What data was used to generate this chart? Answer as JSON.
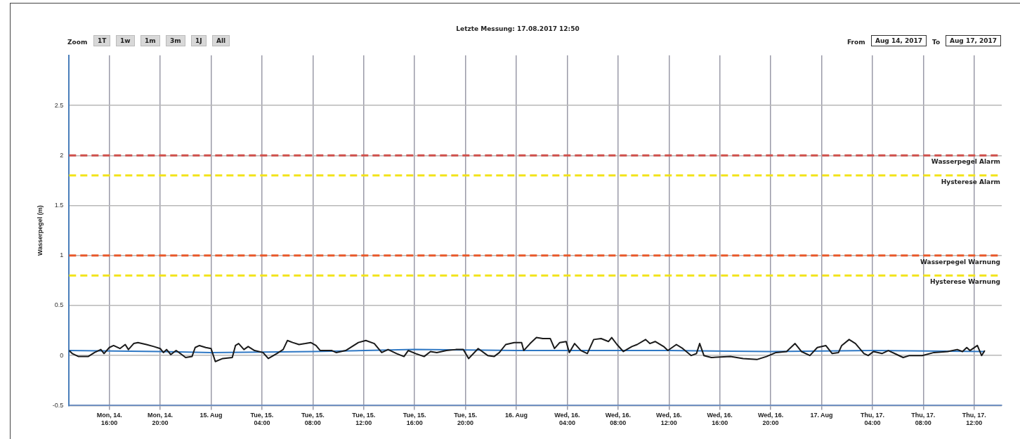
{
  "chart_data": {
    "type": "line",
    "title": "Letzte Messung: 17.08.2017 12:50",
    "ylabel": "Wasserpegel (m)",
    "annotations": [
      "Zoom",
      "1T",
      "1w",
      "1m",
      "3m",
      "1J",
      "All",
      "From",
      "Aug 14, 2017",
      "To",
      "Aug 17, 2017"
    ],
    "xlim": [
      "2017-08-14T12:50",
      "2017-08-17T14:10"
    ],
    "xticks": [
      {
        "value": "2017-08-14T16:00",
        "label": "Mon, 14.\n16:00"
      },
      {
        "value": "2017-08-14T20:00",
        "label": "Mon, 14.\n20:00"
      },
      {
        "value": "2017-08-15T00:00",
        "label": "15. Aug"
      },
      {
        "value": "2017-08-15T04:00",
        "label": "Tue, 15.\n04:00"
      },
      {
        "value": "2017-08-15T08:00",
        "label": "Tue, 15.\n08:00"
      },
      {
        "value": "2017-08-15T12:00",
        "label": "Tue, 15.\n12:00"
      },
      {
        "value": "2017-08-15T16:00",
        "label": "Tue, 15.\n16:00"
      },
      {
        "value": "2017-08-15T20:00",
        "label": "Tue, 15.\n20:00"
      },
      {
        "value": "2017-08-16T00:00",
        "label": "16. Aug"
      },
      {
        "value": "2017-08-16T04:00",
        "label": "Wed, 16.\n04:00"
      },
      {
        "value": "2017-08-16T08:00",
        "label": "Wed, 16.\n08:00"
      },
      {
        "value": "2017-08-16T12:00",
        "label": "Wed, 16.\n12:00"
      },
      {
        "value": "2017-08-16T16:00",
        "label": "Wed, 16.\n16:00"
      },
      {
        "value": "2017-08-16T20:00",
        "label": "Wed, 16.\n20:00"
      },
      {
        "value": "2017-08-17T00:00",
        "label": "17. Aug"
      },
      {
        "value": "2017-08-17T04:00",
        "label": "Thu, 17.\n04:00"
      },
      {
        "value": "2017-08-17T08:00",
        "label": "Thu, 17.\n08:00"
      },
      {
        "value": "2017-08-17T12:00",
        "label": "Thu, 17.\n12:00"
      }
    ],
    "ylim": [
      -0.5,
      3
    ],
    "yticks": [
      -0.5,
      0,
      0.5,
      1,
      1.5,
      2,
      2.5
    ],
    "grid": true,
    "legend": false,
    "marker": "none",
    "line_style": "solid",
    "ref_lines": [
      {
        "axis": "y",
        "value": 2,
        "label": "Wasserpegel Alarm",
        "color": "#d0504c",
        "line_style": "dashed"
      },
      {
        "axis": "y",
        "value": 1.8,
        "label": "Hysterese Alarm",
        "color": "#f2e41a",
        "line_style": "dashed"
      },
      {
        "axis": "y",
        "value": 1,
        "label": "Wasserpegel Warnung",
        "color": "#e8582a",
        "line_style": "dashed"
      },
      {
        "axis": "y",
        "value": 0.8,
        "label": "Hysterese Warnung",
        "color": "#f2e41a",
        "line_style": "dashed"
      }
    ],
    "series": [
      {
        "color": "#1a1a1a",
        "x": [
          "2017-08-14T12:50",
          "2017-08-14T13:05",
          "2017-08-14T13:35",
          "2017-08-14T14:20",
          "2017-08-14T14:50",
          "2017-08-14T15:20",
          "2017-08-14T15:35",
          "2017-08-14T16:00",
          "2017-08-14T16:20",
          "2017-08-14T16:50",
          "2017-08-14T17:15",
          "2017-08-14T17:30",
          "2017-08-14T17:55",
          "2017-08-14T18:15",
          "2017-08-14T18:55",
          "2017-08-14T19:30",
          "2017-08-14T20:00",
          "2017-08-14T20:15",
          "2017-08-14T20:30",
          "2017-08-14T20:50",
          "2017-08-14T21:15",
          "2017-08-14T21:35",
          "2017-08-14T22:00",
          "2017-08-14T22:30",
          "2017-08-14T22:45",
          "2017-08-14T23:05",
          "2017-08-14T23:35",
          "2017-08-15T00:00",
          "2017-08-15T00:20",
          "2017-08-15T00:55",
          "2017-08-15T01:40",
          "2017-08-15T01:55",
          "2017-08-15T02:10",
          "2017-08-15T02:35",
          "2017-08-15T02:55",
          "2017-08-15T03:25",
          "2017-08-15T04:05",
          "2017-08-15T04:30",
          "2017-08-15T05:10",
          "2017-08-15T05:40",
          "2017-08-15T06:00",
          "2017-08-15T06:25",
          "2017-08-15T06:55",
          "2017-08-15T07:25",
          "2017-08-15T07:50",
          "2017-08-15T08:15",
          "2017-08-15T08:35",
          "2017-08-15T09:30",
          "2017-08-15T09:50",
          "2017-08-15T10:35",
          "2017-08-15T11:05",
          "2017-08-15T11:35",
          "2017-08-15T12:10",
          "2017-08-15T12:50",
          "2017-08-15T13:25",
          "2017-08-15T13:55",
          "2017-08-15T14:35",
          "2017-08-15T15:10",
          "2017-08-15T15:30",
          "2017-08-15T16:05",
          "2017-08-15T16:45",
          "2017-08-15T17:15",
          "2017-08-15T17:45",
          "2017-08-15T18:30",
          "2017-08-15T19:15",
          "2017-08-15T19:50",
          "2017-08-15T20:15",
          "2017-08-15T21:00",
          "2017-08-15T21:45",
          "2017-08-15T22:15",
          "2017-08-15T22:40",
          "2017-08-15T23:10",
          "2017-08-15T23:50",
          "2017-08-16T00:25",
          "2017-08-16T00:35",
          "2017-08-16T01:05",
          "2017-08-16T01:35",
          "2017-08-16T02:05",
          "2017-08-16T02:40",
          "2017-08-16T03:00",
          "2017-08-16T03:25",
          "2017-08-16T03:55",
          "2017-08-16T04:10",
          "2017-08-16T04:35",
          "2017-08-16T05:05",
          "2017-08-16T05:35",
          "2017-08-16T06:05",
          "2017-08-16T06:40",
          "2017-08-16T07:15",
          "2017-08-16T07:30",
          "2017-08-16T07:55",
          "2017-08-16T08:25",
          "2017-08-16T09:05",
          "2017-08-16T09:30",
          "2017-08-16T10:10",
          "2017-08-16T10:30",
          "2017-08-16T10:55",
          "2017-08-16T11:35",
          "2017-08-16T11:55",
          "2017-08-16T12:35",
          "2017-08-16T13:05",
          "2017-08-16T13:45",
          "2017-08-16T14:10",
          "2017-08-16T14:25",
          "2017-08-16T14:45",
          "2017-08-16T15:20",
          "2017-08-16T16:50",
          "2017-08-16T17:50",
          "2017-08-16T18:55",
          "2017-08-16T19:40",
          "2017-08-16T20:25",
          "2017-08-16T21:15",
          "2017-08-16T21:55",
          "2017-08-16T22:25",
          "2017-08-16T23:05",
          "2017-08-16T23:40",
          "2017-08-17T00:20",
          "2017-08-17T00:50",
          "2017-08-17T01:20",
          "2017-08-17T01:35",
          "2017-08-17T02:10",
          "2017-08-17T02:40",
          "2017-08-17T03:20",
          "2017-08-17T03:40",
          "2017-08-17T04:05",
          "2017-08-17T04:45",
          "2017-08-17T05:15",
          "2017-08-17T05:55",
          "2017-08-17T06:25",
          "2017-08-17T06:55",
          "2017-08-17T07:55",
          "2017-08-17T08:50",
          "2017-08-17T09:55",
          "2017-08-17T10:40",
          "2017-08-17T11:05",
          "2017-08-17T11:25",
          "2017-08-17T11:40",
          "2017-08-17T12:15",
          "2017-08-17T12:35",
          "2017-08-17T12:50"
        ],
        "values": [
          0.05,
          0.02,
          -0.01,
          -0.01,
          0.03,
          0.06,
          0.02,
          0.08,
          0.1,
          0.07,
          0.11,
          0.06,
          0.12,
          0.13,
          0.11,
          0.09,
          0.07,
          0.03,
          0.06,
          0.01,
          0.05,
          0.02,
          -0.02,
          -0.01,
          0.08,
          0.1,
          0.08,
          0.07,
          -0.06,
          -0.03,
          -0.02,
          0.1,
          0.12,
          0.06,
          0.09,
          0.05,
          0.03,
          -0.03,
          0.02,
          0.06,
          0.15,
          0.13,
          0.11,
          0.12,
          0.13,
          0.1,
          0.05,
          0.05,
          0.03,
          0.05,
          0.09,
          0.13,
          0.15,
          0.12,
          0.03,
          0.06,
          0.02,
          -0.01,
          0.05,
          0.02,
          -0.01,
          0.04,
          0.03,
          0.05,
          0.06,
          0.06,
          -0.03,
          0.07,
          0.0,
          -0.01,
          0.03,
          0.11,
          0.13,
          0.13,
          0.05,
          0.12,
          0.18,
          0.17,
          0.17,
          0.07,
          0.13,
          0.14,
          0.03,
          0.12,
          0.05,
          0.02,
          0.16,
          0.17,
          0.14,
          0.18,
          0.11,
          0.04,
          0.09,
          0.11,
          0.16,
          0.12,
          0.14,
          0.09,
          0.05,
          0.11,
          0.07,
          0.0,
          0.02,
          0.12,
          0.0,
          -0.02,
          -0.01,
          -0.03,
          -0.04,
          -0.01,
          0.03,
          0.04,
          0.12,
          0.04,
          0.0,
          0.08,
          0.1,
          0.02,
          0.03,
          0.1,
          0.16,
          0.12,
          0.02,
          0.0,
          0.04,
          0.02,
          0.05,
          0.01,
          -0.02,
          0.0,
          0.0,
          0.03,
          0.04,
          0.06,
          0.04,
          0.08,
          0.05,
          0.1,
          0.0,
          0.05
        ]
      },
      {
        "color": "#2f78c4",
        "x": [
          "2017-08-14T12:50",
          "2017-08-14T20:00",
          "2017-08-15T00:00",
          "2017-08-15T08:00",
          "2017-08-15T16:00",
          "2017-08-16T00:00",
          "2017-08-16T12:00",
          "2017-08-16T20:00",
          "2017-08-17T04:00",
          "2017-08-17T12:50"
        ],
        "values": [
          0.05,
          0.04,
          0.03,
          0.04,
          0.06,
          0.05,
          0.05,
          0.04,
          0.05,
          0.04
        ]
      }
    ]
  }
}
